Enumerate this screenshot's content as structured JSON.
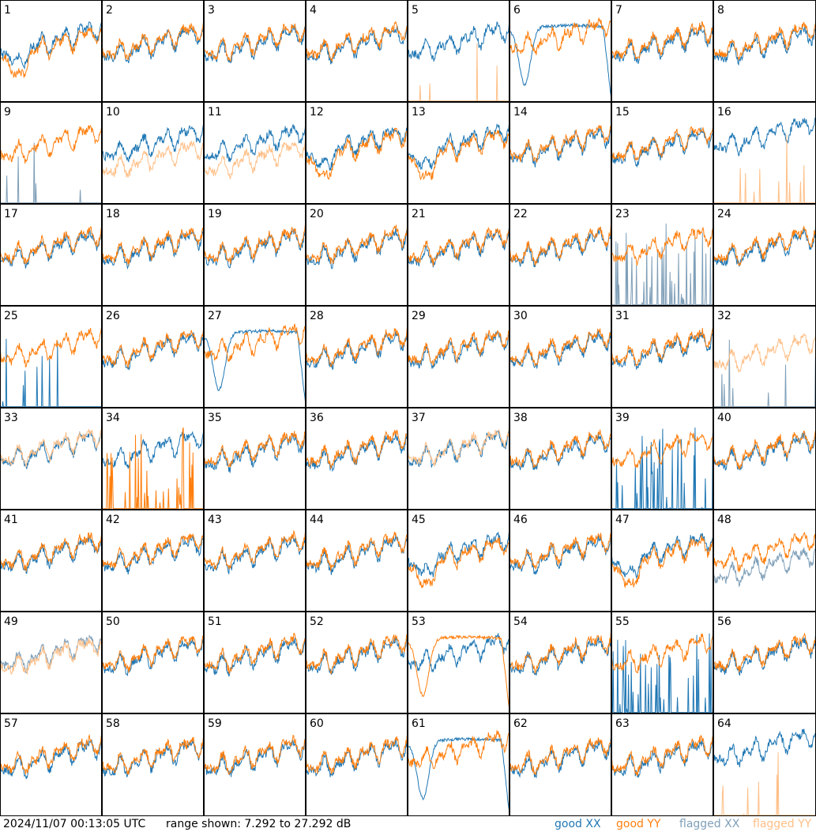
{
  "chart_data": {
    "type": "line",
    "grid": {
      "rows": 8,
      "cols": 8
    },
    "panels": [
      {
        "id": "1",
        "style": "dip"
      },
      {
        "id": "2",
        "style": "normal"
      },
      {
        "id": "3",
        "style": "normal"
      },
      {
        "id": "4",
        "style": "normal"
      },
      {
        "id": "5",
        "style": "y_spikes"
      },
      {
        "id": "6",
        "style": "x_bowl"
      },
      {
        "id": "7",
        "style": "normal"
      },
      {
        "id": "8",
        "style": "normal"
      },
      {
        "id": "9",
        "style": "x_flag_spikes"
      },
      {
        "id": "10",
        "style": "y_flag_low"
      },
      {
        "id": "11",
        "style": "y_flag_low"
      },
      {
        "id": "12",
        "style": "dip"
      },
      {
        "id": "13",
        "style": "dip"
      },
      {
        "id": "14",
        "style": "normal"
      },
      {
        "id": "15",
        "style": "normal"
      },
      {
        "id": "16",
        "style": "y_flag_spikes"
      },
      {
        "id": "17",
        "style": "normal"
      },
      {
        "id": "18",
        "style": "normal"
      },
      {
        "id": "19",
        "style": "normal"
      },
      {
        "id": "20",
        "style": "normal"
      },
      {
        "id": "21",
        "style": "normal"
      },
      {
        "id": "22",
        "style": "normal"
      },
      {
        "id": "23",
        "style": "x_flag_noise"
      },
      {
        "id": "24",
        "style": "normal"
      },
      {
        "id": "25",
        "style": "x_zero"
      },
      {
        "id": "26",
        "style": "normal"
      },
      {
        "id": "27",
        "style": "x_bowl"
      },
      {
        "id": "28",
        "style": "normal"
      },
      {
        "id": "29",
        "style": "normal"
      },
      {
        "id": "30",
        "style": "normal"
      },
      {
        "id": "31",
        "style": "normal"
      },
      {
        "id": "32",
        "style": "both_flag"
      },
      {
        "id": "33",
        "style": "y_flag_over"
      },
      {
        "id": "34",
        "style": "y_spikes_orange"
      },
      {
        "id": "35",
        "style": "normal"
      },
      {
        "id": "36",
        "style": "normal"
      },
      {
        "id": "37",
        "style": "y_flag_over"
      },
      {
        "id": "38",
        "style": "normal"
      },
      {
        "id": "39",
        "style": "x_spikes_blue"
      },
      {
        "id": "40",
        "style": "normal"
      },
      {
        "id": "41",
        "style": "normal"
      },
      {
        "id": "42",
        "style": "normal"
      },
      {
        "id": "43",
        "style": "normal"
      },
      {
        "id": "44",
        "style": "normal"
      },
      {
        "id": "45",
        "style": "dip"
      },
      {
        "id": "46",
        "style": "normal"
      },
      {
        "id": "47",
        "style": "dip"
      },
      {
        "id": "48",
        "style": "x_flag_low"
      },
      {
        "id": "49",
        "style": "both_flag_near"
      },
      {
        "id": "50",
        "style": "normal"
      },
      {
        "id": "51",
        "style": "normal"
      },
      {
        "id": "52",
        "style": "normal"
      },
      {
        "id": "53",
        "style": "y_bowl"
      },
      {
        "id": "54",
        "style": "normal"
      },
      {
        "id": "55",
        "style": "x_spikes_blue"
      },
      {
        "id": "56",
        "style": "normal"
      },
      {
        "id": "57",
        "style": "normal"
      },
      {
        "id": "58",
        "style": "normal"
      },
      {
        "id": "59",
        "style": "normal"
      },
      {
        "id": "60",
        "style": "normal"
      },
      {
        "id": "61",
        "style": "x_bowl"
      },
      {
        "id": "62",
        "style": "normal"
      },
      {
        "id": "63",
        "style": "normal"
      },
      {
        "id": "64",
        "style": "y_flag_spikes"
      }
    ],
    "legend": [
      {
        "label": "good XX",
        "color": "#1f77b4"
      },
      {
        "label": "good YY",
        "color": "#ff7f0e"
      },
      {
        "label": "flagged XX",
        "color": "#7f9fb8"
      },
      {
        "label": "flagged YY",
        "color": "#ffbf87"
      }
    ],
    "legend_position": "bottom-right",
    "y_range_db": [
      7.292,
      27.292
    ],
    "grid_lines": false
  },
  "footer": {
    "timestamp": "2024/11/07 00:13:05 UTC",
    "range": "range shown: 7.292 to 27.292 dB"
  }
}
